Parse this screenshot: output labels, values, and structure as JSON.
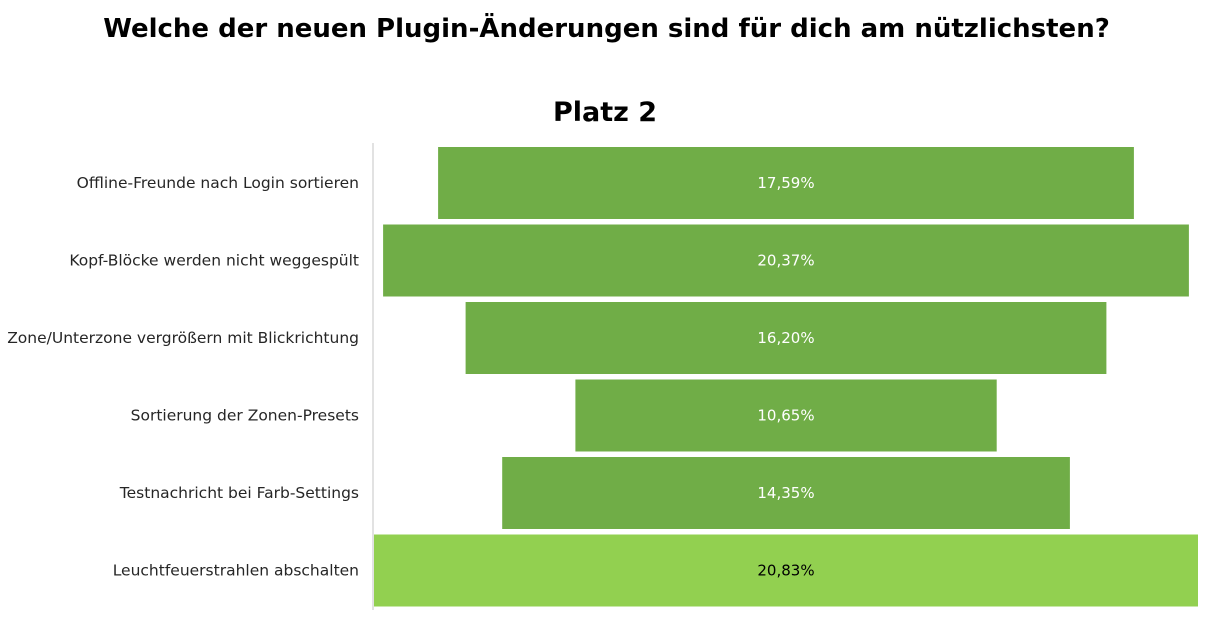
{
  "title": "Welche der neuen Plugin-Änderungen sind für dich am nützlichsten?",
  "subtitle": "Platz 2",
  "chart_data": {
    "type": "bar",
    "orientation": "horizontal",
    "layout": "funnel-centered",
    "categories": [
      "Offline-Freunde nach Login sortieren",
      "Kopf-Blöcke werden nicht weggespült",
      "Zone/Unterzone vergrößern mit Blickrichtung",
      "Sortierung der Zonen-Presets",
      "Testnachricht bei Farb-Settings",
      "Leuchtfeuerstrahlen abschalten"
    ],
    "values": [
      17.59,
      20.37,
      16.2,
      10.65,
      14.35,
      20.83
    ],
    "data_labels": [
      "17,59%",
      "20,37%",
      "16,20%",
      "10,65%",
      "14,35%",
      "20,83%"
    ],
    "xlim": [
      0,
      20.83
    ],
    "highlight_index": 5,
    "grid": false,
    "legend": "none",
    "colors": {
      "bar": "#70ad47",
      "highlight": "#92d050",
      "bar_label": "#ffffff",
      "highlight_label": "#000000",
      "axis": "#d9d9d9"
    }
  }
}
